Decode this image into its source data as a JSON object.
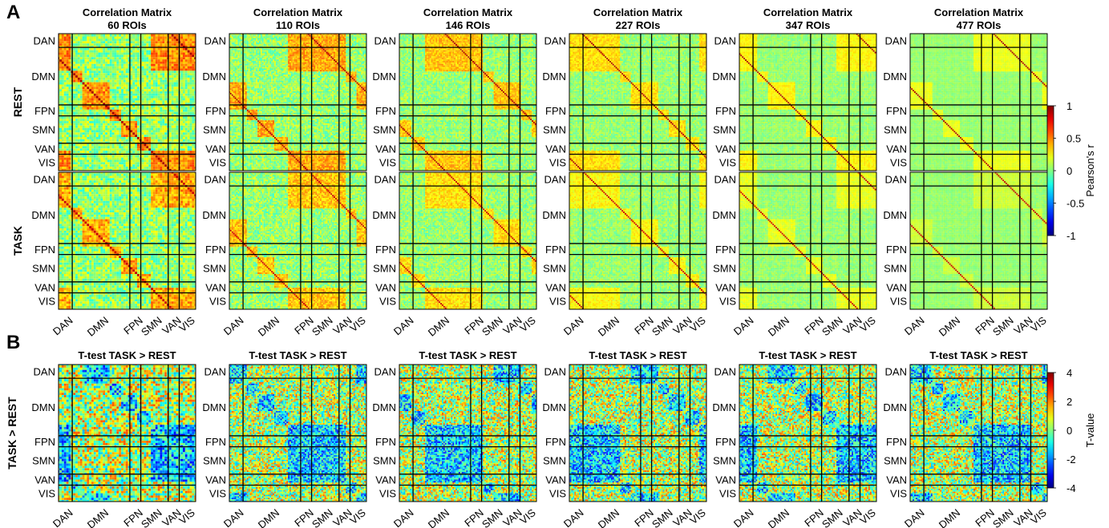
{
  "panel_labels": [
    "A",
    "B"
  ],
  "row_labels": [
    "REST",
    "TASK",
    "TASK > REST"
  ],
  "networks": [
    "DAN",
    "DMN",
    "FPN",
    "SMN",
    "VAN",
    "VIS"
  ],
  "correlation_titles": [
    [
      "Correlation Matrix",
      "60 ROIs"
    ],
    [
      "Correlation Matrix",
      "110 ROIs"
    ],
    [
      "Correlation Matrix",
      "146 ROIs"
    ],
    [
      "Correlation Matrix",
      "227 ROIs"
    ],
    [
      "Correlation Matrix",
      "347 ROIs"
    ],
    [
      "Correlation Matrix",
      "477 ROIs"
    ]
  ],
  "ttest_title": "T-test TASK > REST",
  "colorbar_corr": {
    "label": "Pearson's r",
    "ticks": [
      "1",
      "0.5",
      "0",
      "-0.5",
      "-1"
    ]
  },
  "colorbar_t": {
    "label": "T-value",
    "ticks": [
      "4",
      "2",
      "0",
      "-2",
      "-4"
    ]
  },
  "colors": {
    "background": "#ffffff",
    "boundary_lines": "#000000"
  },
  "chart_data": [
    {
      "type": "heatmap",
      "name": "Correlation matrices (REST, TASK) and T-test TASK > REST",
      "roi_counts": [
        60,
        110,
        146,
        227,
        347,
        477
      ],
      "rows": [
        "REST",
        "TASK",
        "TASK > REST"
      ],
      "network_order": [
        "DAN",
        "DMN",
        "FPN",
        "SMN",
        "VAN",
        "VIS"
      ],
      "network_fraction": [
        0.1,
        0.42,
        0.08,
        0.2,
        0.08,
        0.12
      ],
      "colormap": "jet",
      "corr_range": [
        -1,
        1
      ],
      "t_range": [
        -4,
        4
      ]
    }
  ]
}
